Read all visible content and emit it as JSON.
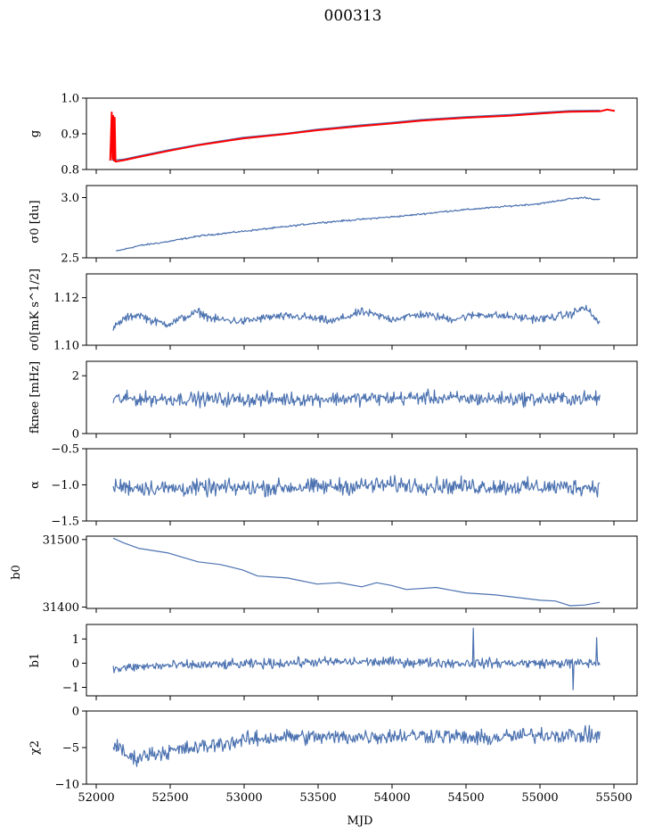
{
  "figure": {
    "title": "000313",
    "xlabel": "MJD"
  },
  "chart_data": [
    {
      "type": "line",
      "id": "g",
      "ylabel": "g",
      "ylim": [
        0.8,
        1.0
      ],
      "yticks": [
        0.8,
        0.9,
        1.0
      ],
      "ytick_labels": [
        "0.8",
        "0.9",
        "1.0"
      ],
      "xlim": [
        51950,
        55650
      ],
      "series": [
        {
          "color": "#4c72b0",
          "points": [
            [
              52120,
              0.826
            ],
            [
              52200,
              0.829
            ],
            [
              52300,
              0.838
            ],
            [
              52500,
              0.855
            ],
            [
              52700,
              0.87
            ],
            [
              53000,
              0.89
            ],
            [
              53300,
              0.902
            ],
            [
              53500,
              0.913
            ],
            [
              53800,
              0.925
            ],
            [
              54000,
              0.932
            ],
            [
              54200,
              0.94
            ],
            [
              54500,
              0.948
            ],
            [
              54800,
              0.954
            ],
            [
              55000,
              0.96
            ],
            [
              55200,
              0.965
            ],
            [
              55400,
              0.966
            ]
          ]
        },
        {
          "color": "#ff0000",
          "points": [
            [
              52110,
              0.825
            ],
            [
              52120,
              0.96
            ],
            [
              52125,
              0.83
            ],
            [
              52130,
              0.95
            ],
            [
              52135,
              0.825
            ],
            [
              52140,
              0.945
            ],
            [
              52145,
              0.822
            ],
            [
              52200,
              0.826
            ],
            [
              52300,
              0.835
            ],
            [
              52500,
              0.852
            ],
            [
              52700,
              0.868
            ],
            [
              53000,
              0.887
            ],
            [
              53300,
              0.9
            ],
            [
              53500,
              0.91
            ],
            [
              53800,
              0.922
            ],
            [
              54000,
              0.929
            ],
            [
              54200,
              0.937
            ],
            [
              54500,
              0.945
            ],
            [
              54800,
              0.951
            ],
            [
              55000,
              0.957
            ],
            [
              55200,
              0.962
            ],
            [
              55400,
              0.963
            ],
            [
              55450,
              0.968
            ],
            [
              55500,
              0.964
            ]
          ]
        }
      ]
    },
    {
      "type": "line",
      "id": "sigma0_du",
      "ylabel": "σ0 [du]",
      "ylim": [
        2.5,
        3.1
      ],
      "yticks": [
        2.5,
        3.0
      ],
      "ytick_labels": [
        "2.5",
        "3.0"
      ],
      "xlim": [
        51950,
        55650
      ],
      "series": [
        {
          "color": "#4c72b0",
          "noise": 0.005,
          "points": [
            [
              52150,
              2.555
            ],
            [
              52300,
              2.6
            ],
            [
              52500,
              2.635
            ],
            [
              52700,
              2.68
            ],
            [
              53000,
              2.72
            ],
            [
              53300,
              2.76
            ],
            [
              53500,
              2.79
            ],
            [
              53800,
              2.82
            ],
            [
              54100,
              2.85
            ],
            [
              54400,
              2.89
            ],
            [
              54700,
              2.92
            ],
            [
              55000,
              2.95
            ],
            [
              55200,
              2.99
            ],
            [
              55300,
              3.0
            ],
            [
              55400,
              2.98
            ]
          ]
        }
      ]
    },
    {
      "type": "line",
      "id": "sigma0_mK",
      "ylabel": "σ0[mK s^1/2]",
      "ylim": [
        1.1,
        1.13
      ],
      "yticks": [
        1.1,
        1.12
      ],
      "ytick_labels": [
        "1.10",
        "1.12"
      ],
      "xlim": [
        51950,
        55650
      ],
      "series": [
        {
          "color": "#4c72b0",
          "noise": 0.0012,
          "points": [
            [
              52130,
              1.107
            ],
            [
              52200,
              1.111
            ],
            [
              52300,
              1.113
            ],
            [
              52400,
              1.11
            ],
            [
              52500,
              1.109
            ],
            [
              52700,
              1.114
            ],
            [
              52800,
              1.111
            ],
            [
              53000,
              1.11
            ],
            [
              53200,
              1.112
            ],
            [
              53400,
              1.112
            ],
            [
              53600,
              1.11
            ],
            [
              53800,
              1.114
            ],
            [
              54000,
              1.111
            ],
            [
              54200,
              1.113
            ],
            [
              54400,
              1.111
            ],
            [
              54600,
              1.113
            ],
            [
              54800,
              1.112
            ],
            [
              55000,
              1.111
            ],
            [
              55200,
              1.113
            ],
            [
              55300,
              1.116
            ],
            [
              55400,
              1.109
            ]
          ]
        }
      ]
    },
    {
      "type": "line",
      "id": "fknee",
      "ylabel": "fknee [mHz]",
      "ylim": [
        0,
        2.5
      ],
      "yticks": [
        0,
        2
      ],
      "ytick_labels": [
        "0",
        "2"
      ],
      "xlim": [
        51950,
        55650
      ],
      "series": [
        {
          "color": "#4c72b0",
          "noise": 0.17,
          "points": [
            [
              52130,
              1.2
            ],
            [
              52500,
              1.2
            ],
            [
              53000,
              1.18
            ],
            [
              53500,
              1.2
            ],
            [
              54000,
              1.22
            ],
            [
              54200,
              1.25
            ],
            [
              54500,
              1.2
            ],
            [
              55000,
              1.2
            ],
            [
              55400,
              1.22
            ]
          ]
        }
      ]
    },
    {
      "type": "line",
      "id": "alpha",
      "ylabel": "α",
      "ylim": [
        -1.5,
        -0.5
      ],
      "yticks": [
        -1.5,
        -1.0,
        -0.5
      ],
      "ytick_labels": [
        "−1.5",
        "−1.0",
        "−0.5"
      ],
      "xlim": [
        51950,
        55650
      ],
      "series": [
        {
          "color": "#4c72b0",
          "noise": 0.08,
          "points": [
            [
              52130,
              -1.02
            ],
            [
              52500,
              -1.05
            ],
            [
              53000,
              -1.04
            ],
            [
              53500,
              -1.03
            ],
            [
              54000,
              -1.0
            ],
            [
              54500,
              -1.02
            ],
            [
              55000,
              -1.03
            ],
            [
              55400,
              -1.03
            ]
          ]
        }
      ]
    },
    {
      "type": "line",
      "id": "b0",
      "ylabel": "b0",
      "ylim": [
        31398,
        31505
      ],
      "yticks": [
        31400,
        31500
      ],
      "ytick_labels": [
        "31400",
        "31500"
      ],
      "xlim": [
        51950,
        55650
      ],
      "series": [
        {
          "color": "#4c72b0",
          "noise": 0.0,
          "points": [
            [
              52130,
              31502
            ],
            [
              52200,
              31495
            ],
            [
              52300,
              31487
            ],
            [
              52500,
              31480
            ],
            [
              52700,
              31467
            ],
            [
              52850,
              31463
            ],
            [
              53000,
              31455
            ],
            [
              53100,
              31446
            ],
            [
              53300,
              31443
            ],
            [
              53500,
              31434
            ],
            [
              53650,
              31436
            ],
            [
              53800,
              31430
            ],
            [
              53900,
              31436
            ],
            [
              54000,
              31432
            ],
            [
              54100,
              31426
            ],
            [
              54300,
              31429
            ],
            [
              54500,
              31421
            ],
            [
              54700,
              31418
            ],
            [
              55000,
              31410
            ],
            [
              55100,
              31409
            ],
            [
              55200,
              31402
            ],
            [
              55300,
              31403
            ],
            [
              55400,
              31407
            ]
          ]
        }
      ]
    },
    {
      "type": "line",
      "id": "b1",
      "ylabel": "b1",
      "ylim": [
        -1.35,
        1.6
      ],
      "yticks": [
        -1,
        0,
        1
      ],
      "ytick_labels": [
        "−1",
        "0",
        "1"
      ],
      "xlim": [
        51950,
        55650
      ],
      "series": [
        {
          "color": "#4c72b0",
          "noise": 0.14,
          "spikes": [
            [
              54550,
              1.45
            ],
            [
              55220,
              -1.1
            ],
            [
              55380,
              1.05
            ]
          ],
          "points": [
            [
              52130,
              -0.25
            ],
            [
              52300,
              -0.15
            ],
            [
              52500,
              -0.1
            ],
            [
              53000,
              -0.05
            ],
            [
              53500,
              0.05
            ],
            [
              54000,
              0.05
            ],
            [
              54500,
              0.0
            ],
            [
              55000,
              0.0
            ],
            [
              55400,
              0.0
            ]
          ]
        }
      ]
    },
    {
      "type": "line",
      "id": "chi2",
      "ylabel": "χ2",
      "ylim": [
        -10,
        0
      ],
      "yticks": [
        -10,
        -5,
        0
      ],
      "ytick_labels": [
        "−10",
        "−5",
        "0"
      ],
      "xlim": [
        51950,
        55650
      ],
      "xticks": [
        52000,
        52500,
        53000,
        53500,
        54000,
        54500,
        55000,
        55500
      ],
      "xtick_labels": [
        "52000",
        "52500",
        "53000",
        "53500",
        "54000",
        "54500",
        "55000",
        "55500"
      ],
      "series": [
        {
          "color": "#4c72b0",
          "noise": 0.75,
          "points": [
            [
              52130,
              -4.5
            ],
            [
              52250,
              -6.5
            ],
            [
              52400,
              -5.8
            ],
            [
              52700,
              -5.0
            ],
            [
              53000,
              -4.0
            ],
            [
              53300,
              -3.5
            ],
            [
              53600,
              -3.6
            ],
            [
              54000,
              -3.4
            ],
            [
              54300,
              -3.3
            ],
            [
              54600,
              -3.8
            ],
            [
              55000,
              -3.2
            ],
            [
              55400,
              -3.4
            ]
          ]
        }
      ]
    }
  ]
}
